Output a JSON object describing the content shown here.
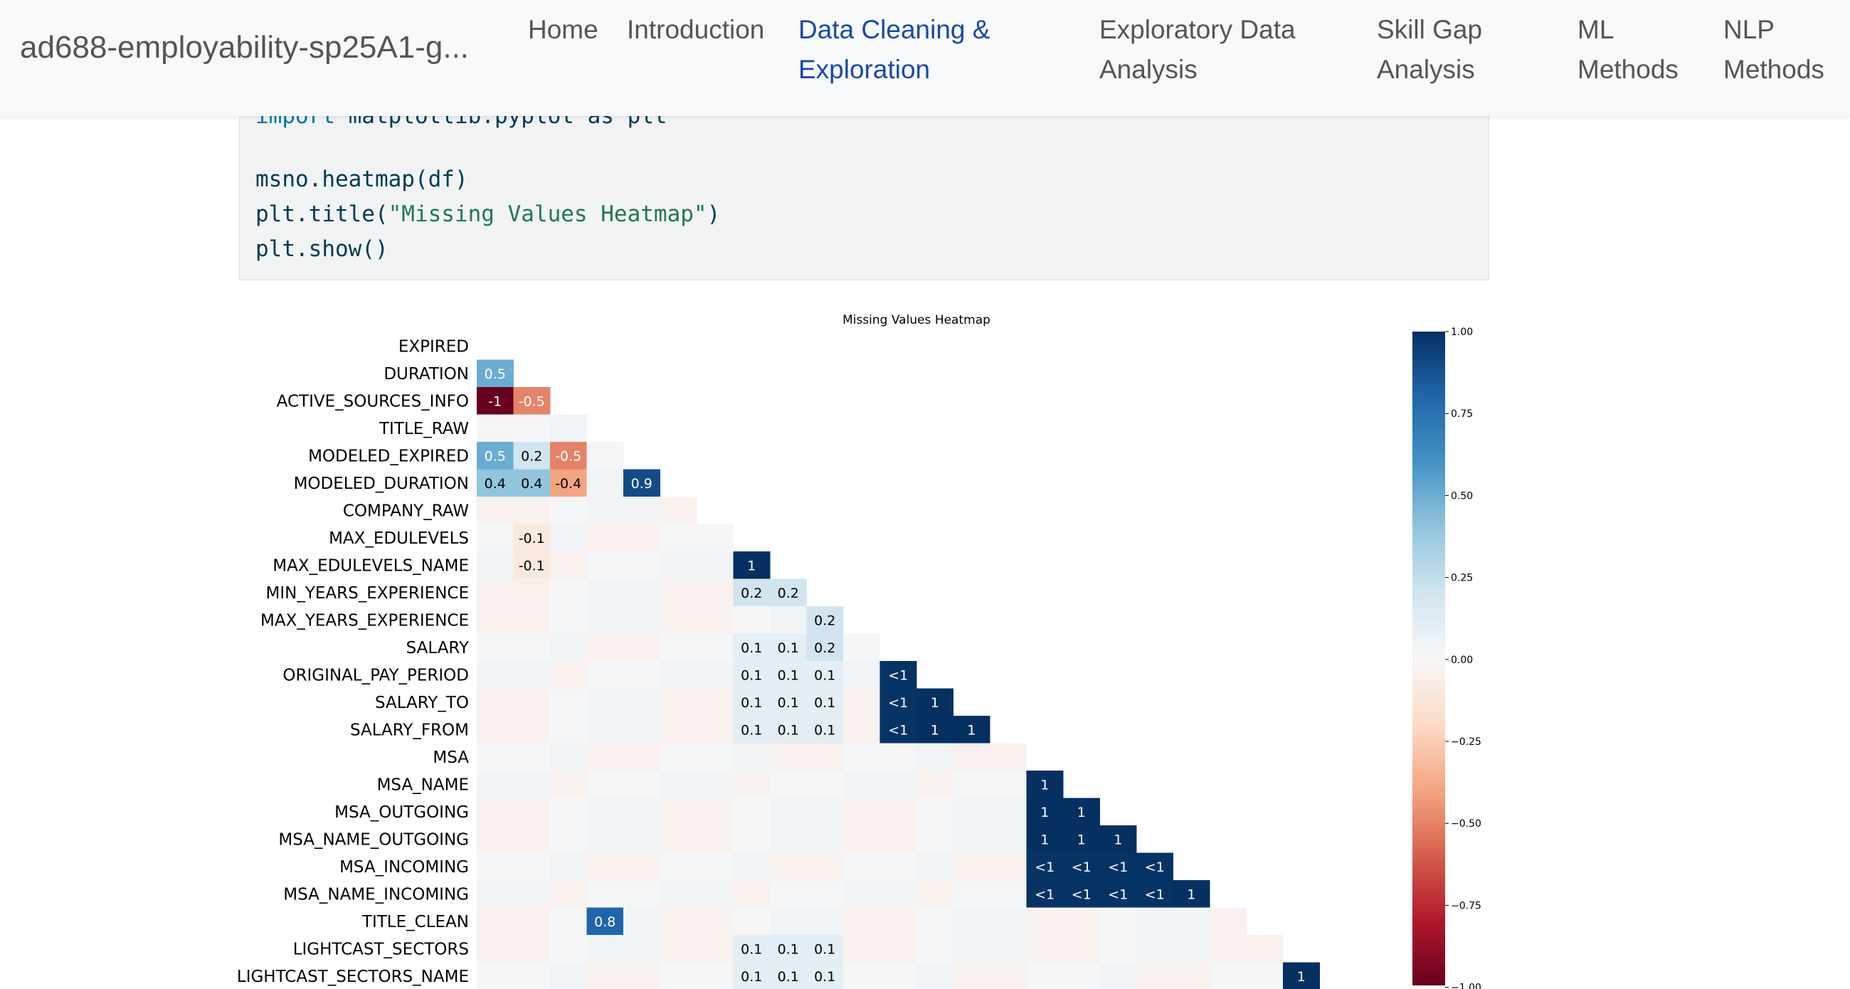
{
  "navbar": {
    "brand": "ad688-employability-sp25A1-g...",
    "items": [
      {
        "label": "Home",
        "active": false
      },
      {
        "label": "Introduction",
        "active": false
      },
      {
        "label": "Data Cleaning &\nExploration",
        "active": true
      },
      {
        "label": "Exploratory Data\nAnalysis",
        "active": false
      },
      {
        "label": "Skill Gap\nAnalysis",
        "active": false
      },
      {
        "label": "ML\nMethods",
        "active": false
      },
      {
        "label": "NLP\nMethods",
        "active": false
      }
    ]
  },
  "code": {
    "partial_line_kw": "import",
    "partial_line_rest": " matplotlib.pyplot as plt",
    "line1": "msno.heatmap(df)",
    "line2_pre": "plt.title(",
    "line2_str": "\"Missing Values Heatmap\"",
    "line2_post": ")",
    "line3": "plt.show()"
  },
  "chart_data": {
    "type": "heatmap",
    "title": "Missing Values Heatmap",
    "rows": [
      "EXPIRED",
      "DURATION",
      "ACTIVE_SOURCES_INFO",
      "TITLE_RAW",
      "MODELED_EXPIRED",
      "MODELED_DURATION",
      "COMPANY_RAW",
      "MAX_EDULEVELS",
      "MAX_EDULEVELS_NAME",
      "MIN_YEARS_EXPERIENCE",
      "MAX_YEARS_EXPERIENCE",
      "SALARY",
      "ORIGINAL_PAY_PERIOD",
      "SALARY_TO",
      "SALARY_FROM",
      "MSA",
      "MSA_NAME",
      "MSA_OUTGOING",
      "MSA_NAME_OUTGOING",
      "MSA_INCOMING",
      "MSA_NAME_INCOMING",
      "TITLE_CLEAN",
      "LIGHTCAST_SECTORS",
      "LIGHTCAST_SECTORS_NAME"
    ],
    "labeled_cells": [
      {
        "row": 1,
        "col": 0,
        "value": 0.5,
        "label": "0.5"
      },
      {
        "row": 2,
        "col": 0,
        "value": -1,
        "label": "-1"
      },
      {
        "row": 2,
        "col": 1,
        "value": -0.5,
        "label": "-0.5"
      },
      {
        "row": 4,
        "col": 0,
        "value": 0.5,
        "label": "0.5"
      },
      {
        "row": 4,
        "col": 1,
        "value": 0.2,
        "label": "0.2"
      },
      {
        "row": 4,
        "col": 2,
        "value": -0.5,
        "label": "-0.5"
      },
      {
        "row": 5,
        "col": 0,
        "value": 0.4,
        "label": "0.4"
      },
      {
        "row": 5,
        "col": 1,
        "value": 0.4,
        "label": "0.4"
      },
      {
        "row": 5,
        "col": 2,
        "value": -0.4,
        "label": "-0.4"
      },
      {
        "row": 5,
        "col": 4,
        "value": 0.9,
        "label": "0.9"
      },
      {
        "row": 7,
        "col": 1,
        "value": -0.1,
        "label": "-0.1"
      },
      {
        "row": 8,
        "col": 1,
        "value": -0.1,
        "label": "-0.1"
      },
      {
        "row": 8,
        "col": 7,
        "value": 1,
        "label": "1"
      },
      {
        "row": 9,
        "col": 7,
        "value": 0.2,
        "label": "0.2"
      },
      {
        "row": 9,
        "col": 8,
        "value": 0.2,
        "label": "0.2"
      },
      {
        "row": 10,
        "col": 9,
        "value": 0.2,
        "label": "0.2"
      },
      {
        "row": 11,
        "col": 7,
        "value": 0.1,
        "label": "0.1"
      },
      {
        "row": 11,
        "col": 8,
        "value": 0.1,
        "label": "0.1"
      },
      {
        "row": 11,
        "col": 9,
        "value": 0.2,
        "label": "0.2"
      },
      {
        "row": 12,
        "col": 7,
        "value": 0.1,
        "label": "0.1"
      },
      {
        "row": 12,
        "col": 8,
        "value": 0.1,
        "label": "0.1"
      },
      {
        "row": 12,
        "col": 9,
        "value": 0.1,
        "label": "0.1"
      },
      {
        "row": 12,
        "col": 11,
        "value": 0.99,
        "label": "<1"
      },
      {
        "row": 13,
        "col": 7,
        "value": 0.1,
        "label": "0.1"
      },
      {
        "row": 13,
        "col": 8,
        "value": 0.1,
        "label": "0.1"
      },
      {
        "row": 13,
        "col": 9,
        "value": 0.1,
        "label": "0.1"
      },
      {
        "row": 13,
        "col": 11,
        "value": 0.99,
        "label": "<1"
      },
      {
        "row": 13,
        "col": 12,
        "value": 1,
        "label": "1"
      },
      {
        "row": 14,
        "col": 7,
        "value": 0.1,
        "label": "0.1"
      },
      {
        "row": 14,
        "col": 8,
        "value": 0.1,
        "label": "0.1"
      },
      {
        "row": 14,
        "col": 9,
        "value": 0.1,
        "label": "0.1"
      },
      {
        "row": 14,
        "col": 11,
        "value": 0.99,
        "label": "<1"
      },
      {
        "row": 14,
        "col": 12,
        "value": 1,
        "label": "1"
      },
      {
        "row": 14,
        "col": 13,
        "value": 1,
        "label": "1"
      },
      {
        "row": 16,
        "col": 15,
        "value": 1,
        "label": "1"
      },
      {
        "row": 17,
        "col": 15,
        "value": 1,
        "label": "1"
      },
      {
        "row": 17,
        "col": 16,
        "value": 1,
        "label": "1"
      },
      {
        "row": 18,
        "col": 15,
        "value": 1,
        "label": "1"
      },
      {
        "row": 18,
        "col": 16,
        "value": 1,
        "label": "1"
      },
      {
        "row": 18,
        "col": 17,
        "value": 1,
        "label": "1"
      },
      {
        "row": 19,
        "col": 15,
        "value": 0.99,
        "label": "<1"
      },
      {
        "row": 19,
        "col": 16,
        "value": 0.99,
        "label": "<1"
      },
      {
        "row": 19,
        "col": 17,
        "value": 0.99,
        "label": "<1"
      },
      {
        "row": 19,
        "col": 18,
        "value": 0.99,
        "label": "<1"
      },
      {
        "row": 20,
        "col": 15,
        "value": 0.99,
        "label": "<1"
      },
      {
        "row": 20,
        "col": 16,
        "value": 0.99,
        "label": "<1"
      },
      {
        "row": 20,
        "col": 17,
        "value": 0.99,
        "label": "<1"
      },
      {
        "row": 20,
        "col": 18,
        "value": 0.99,
        "label": "<1"
      },
      {
        "row": 20,
        "col": 19,
        "value": 1,
        "label": "1"
      },
      {
        "row": 21,
        "col": 3,
        "value": 0.8,
        "label": "0.8"
      },
      {
        "row": 22,
        "col": 7,
        "value": 0.1,
        "label": "0.1"
      },
      {
        "row": 22,
        "col": 8,
        "value": 0.1,
        "label": "0.1"
      },
      {
        "row": 22,
        "col": 9,
        "value": 0.1,
        "label": "0.1"
      },
      {
        "row": 23,
        "col": 7,
        "value": 0.1,
        "label": "0.1"
      },
      {
        "row": 23,
        "col": 8,
        "value": 0.1,
        "label": "0.1"
      },
      {
        "row": 23,
        "col": 9,
        "value": 0.1,
        "label": "0.1"
      },
      {
        "row": 23,
        "col": 22,
        "value": 1,
        "label": "1"
      }
    ],
    "colorbar": {
      "colormap": "RdBu",
      "vmin": -1,
      "vmax": 1,
      "ticks": [
        "1.00",
        "0.75",
        "0.50",
        "0.25",
        "0.00",
        "−0.25",
        "−0.50",
        "−0.75",
        "−1.00"
      ]
    }
  }
}
